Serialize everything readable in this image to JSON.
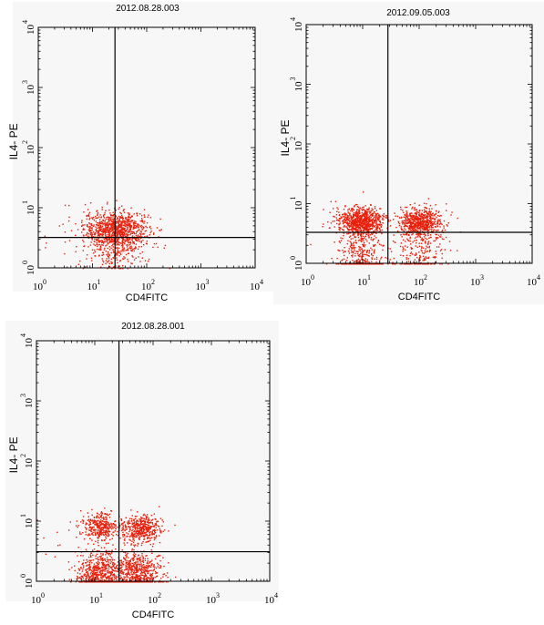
{
  "chart_data": [
    {
      "type": "scatter",
      "title": "2012.08.28.003",
      "xlabel": "CD4FITC",
      "ylabel": "IL4- PE",
      "x_scale": "log",
      "y_scale": "log",
      "xlim": [
        1,
        10000
      ],
      "ylim": [
        1,
        10000
      ],
      "x_ticks": [
        "10|0",
        "10|1",
        "10|2",
        "10|3",
        "10|4"
      ],
      "y_ticks": [
        "10|0",
        "10|1",
        "10|2",
        "10|3",
        "10|4"
      ],
      "quadrant_gate": {
        "x": 26,
        "y": 3.2
      },
      "point_color": "#e8200c",
      "clusters": [
        {
          "x_center": 27,
          "y_center": 4.5,
          "x_spread_decades": 0.3,
          "y_spread_decades": 0.15,
          "count": 900
        },
        {
          "x_center": 25,
          "y_center": 2.2,
          "x_spread_decades": 0.3,
          "y_spread_decades": 0.2,
          "count": 250
        }
      ]
    },
    {
      "type": "scatter",
      "title": "2012.09.05.003",
      "xlabel": "CD4FITC",
      "ylabel": "IL4- PE",
      "x_scale": "log",
      "y_scale": "log",
      "xlim": [
        1,
        10000
      ],
      "ylim": [
        1,
        10000
      ],
      "x_ticks": [
        "10|0",
        "10|1",
        "10|2",
        "10|3",
        "10|4"
      ],
      "y_ticks": [
        "10|0",
        "10|1",
        "10|2",
        "10|3",
        "10|4"
      ],
      "quadrant_gate": {
        "x": 28,
        "y": 3.3
      },
      "point_color": "#e8200c",
      "clusters": [
        {
          "x_center": 9,
          "y_center": 5.0,
          "x_spread_decades": 0.2,
          "y_spread_decades": 0.12,
          "count": 800
        },
        {
          "x_center": 100,
          "y_center": 5.0,
          "x_spread_decades": 0.2,
          "y_spread_decades": 0.12,
          "count": 650
        },
        {
          "x_center": 10,
          "y_center": 1.2,
          "x_spread_decades": 0.2,
          "y_spread_decades": 0.35,
          "count": 400
        },
        {
          "x_center": 100,
          "y_center": 1.5,
          "x_spread_decades": 0.25,
          "y_spread_decades": 0.3,
          "count": 250
        }
      ]
    },
    {
      "type": "scatter",
      "title": "2012.08.28.001",
      "xlabel": "CD4FITC",
      "ylabel": "IL4- PE",
      "x_scale": "log",
      "y_scale": "log",
      "xlim": [
        1,
        10000
      ],
      "ylim": [
        1,
        10000
      ],
      "x_ticks": [
        "10|0",
        "10|1",
        "10|2",
        "10|3",
        "10|4"
      ],
      "y_ticks": [
        "10|0",
        "10|1",
        "10|2",
        "10|3",
        "10|4"
      ],
      "quadrant_gate": {
        "x": 26,
        "y": 3.1
      },
      "point_color": "#e8200c",
      "clusters": [
        {
          "x_center": 12,
          "y_center": 8.0,
          "x_spread_decades": 0.15,
          "y_spread_decades": 0.12,
          "count": 350
        },
        {
          "x_center": 60,
          "y_center": 7.5,
          "x_spread_decades": 0.17,
          "y_spread_decades": 0.12,
          "count": 450
        },
        {
          "x_center": 12,
          "y_center": 1.4,
          "x_spread_decades": 0.2,
          "y_spread_decades": 0.2,
          "count": 650
        },
        {
          "x_center": 50,
          "y_center": 1.3,
          "x_spread_decades": 0.22,
          "y_spread_decades": 0.2,
          "count": 650
        }
      ]
    }
  ]
}
